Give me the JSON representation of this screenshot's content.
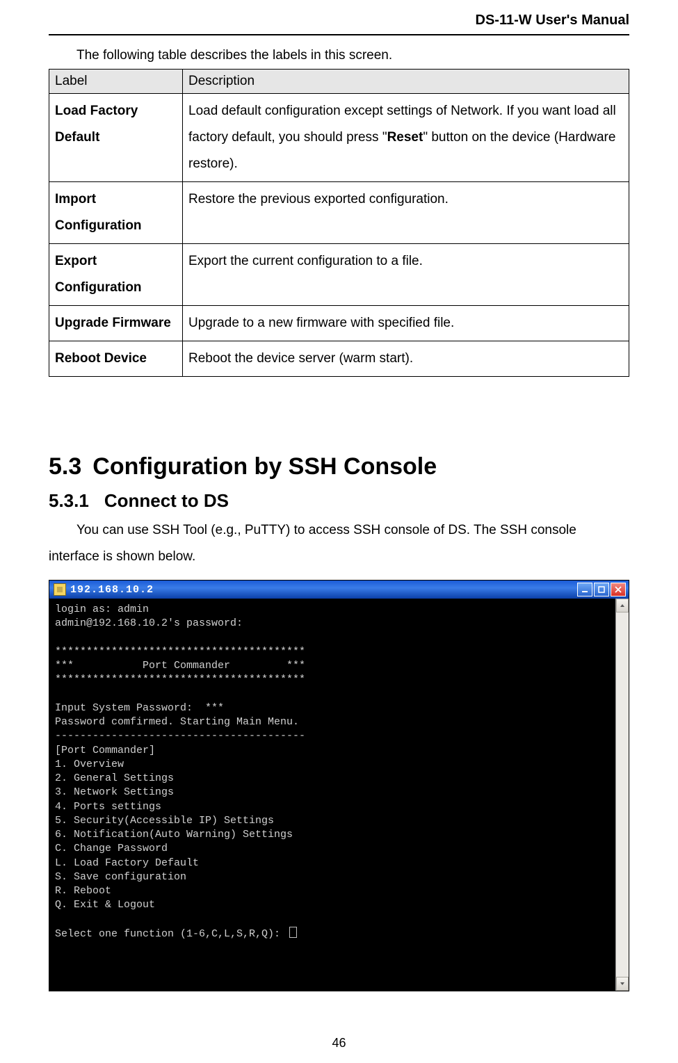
{
  "header": {
    "title": "DS-11-W User's Manual"
  },
  "intro_text": "The following table describes the labels in this screen.",
  "table": {
    "columns": [
      "Label",
      "Description"
    ],
    "rows": [
      {
        "label": "Load Factory Default",
        "desc_pre": "Load default configuration except settings of Network.  If you want load all factory default, you should press \"",
        "desc_bold": "Reset",
        "desc_post": "\" button on the device (Hardware restore).",
        "justify": true
      },
      {
        "label": "Import Configuration",
        "desc": "Restore the previous exported configuration."
      },
      {
        "label": "Export Configuration",
        "desc": "Export the current configuration to a file."
      },
      {
        "label": "Upgrade Firmware",
        "desc": "Upgrade to a new firmware with specified file."
      },
      {
        "label": "Reboot Device",
        "desc": "Reboot the device server (warm start)."
      }
    ]
  },
  "section": {
    "number": "5.3",
    "title": "Configuration by SSH Console"
  },
  "subsection": {
    "number": "5.3.1",
    "title": "Connect to DS"
  },
  "body_para": "You can use SSH Tool (e.g., PuTTY) to access SSH console of DS.   The SSH console interface is shown below.",
  "terminal": {
    "titlebar_text": "192.168.10.2",
    "lines": [
      "login as: admin",
      "admin@192.168.10.2's password:",
      "",
      "****************************************",
      "***           Port Commander         ***",
      "****************************************",
      "",
      "Input System Password:  ***",
      "Password comfirmed. Starting Main Menu.",
      "----------------------------------------",
      "[Port Commander]",
      "1. Overview",
      "2. General Settings",
      "3. Network Settings",
      "4. Ports settings",
      "5. Security(Accessible IP) Settings",
      "6. Notification(Auto Warning) Settings",
      "C. Change Password",
      "L. Load Factory Default",
      "S. Save configuration",
      "R. Reboot",
      "Q. Exit & Logout",
      ""
    ],
    "prompt": "Select one function (1-6,C,L,S,R,Q): "
  },
  "page_number": "46",
  "colors": {
    "titlebar_start": "#1b5bd6",
    "titlebar_end": "#0a3fa8",
    "terminal_bg": "#000000",
    "terminal_fg": "#d0d0d0",
    "close_btn": "#d93025",
    "table_header_bg": "#e6e6e6"
  }
}
